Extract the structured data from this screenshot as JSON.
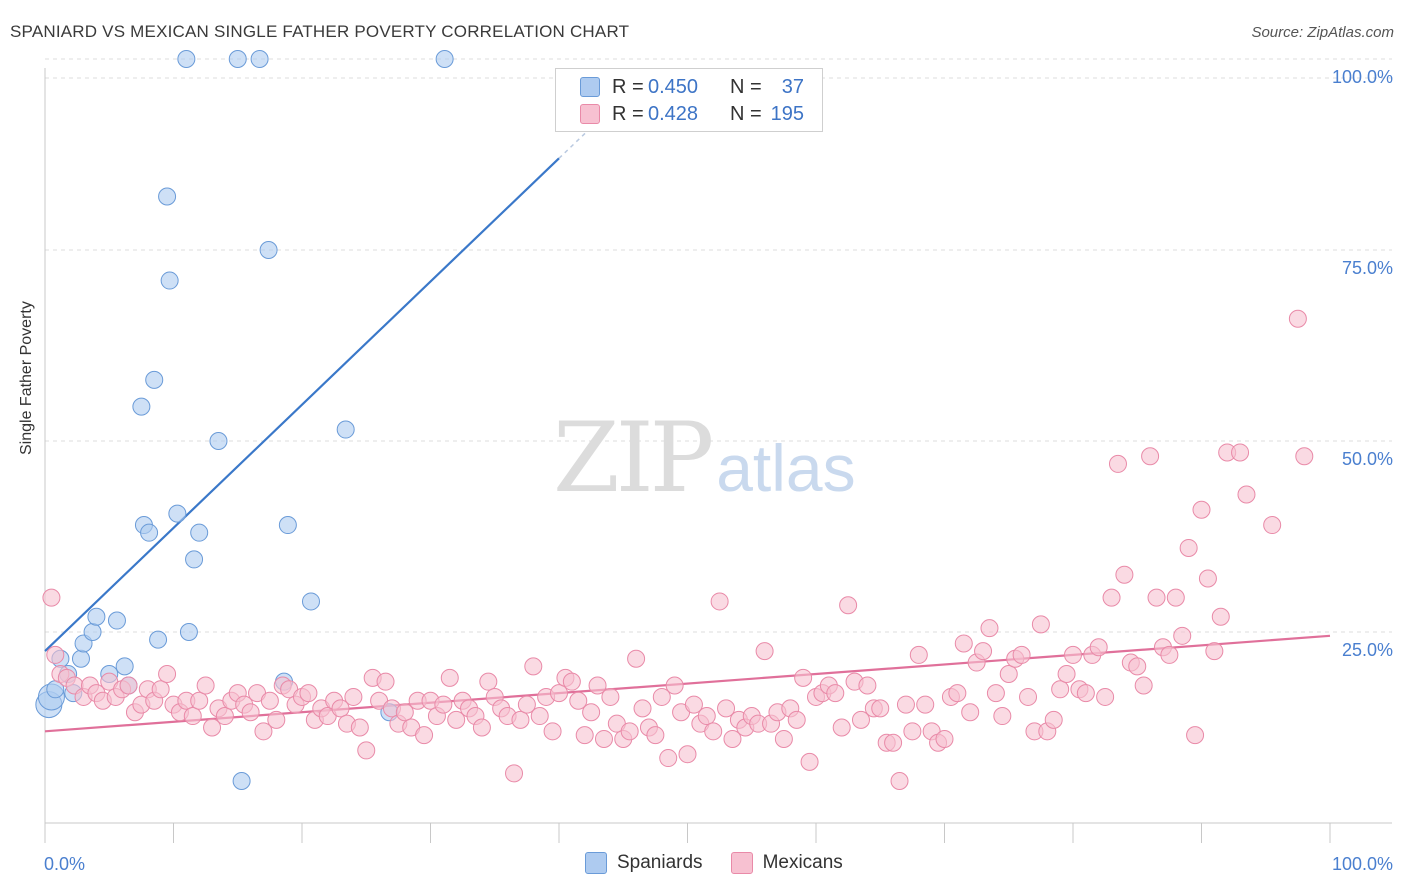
{
  "title": "SPANIARD VS MEXICAN SINGLE FATHER POVERTY CORRELATION CHART",
  "source": "Source: ZipAtlas.com",
  "watermark": {
    "zip": "ZIP",
    "atlas": "atlas"
  },
  "legend": {
    "rows": [
      {
        "r_label": "R = ",
        "r_value": "0.450",
        "n_label": "N = ",
        "n_value": "37",
        "color": "#aecbf0",
        "border": "#6a9bd8"
      },
      {
        "r_label": "R = ",
        "r_value": "0.428",
        "n_label": "N = ",
        "n_value": "195",
        "color": "#f7c1d1",
        "border": "#e98aa8"
      }
    ]
  },
  "bottom_legend": [
    {
      "label": "Spaniards",
      "color": "#aecbf0",
      "border": "#6a9bd8"
    },
    {
      "label": "Mexicans",
      "color": "#f7c1d1",
      "border": "#e98aa8"
    }
  ],
  "chart_data": {
    "type": "scatter",
    "title": "SPANIARD VS MEXICAN SINGLE FATHER POVERTY CORRELATION CHART",
    "xlabel": "",
    "ylabel": "Single Father Poverty",
    "xlim": [
      0,
      100
    ],
    "ylim": [
      0,
      100
    ],
    "x_tick_labels": [
      "0.0%",
      "100.0%"
    ],
    "y_ticks": [
      25,
      50,
      75,
      100
    ],
    "y_tick_labels": [
      "25.0%",
      "50.0%",
      "75.0%",
      "100.0%"
    ],
    "grid": true,
    "series": [
      {
        "name": "Spaniards",
        "color": "#aecbf0",
        "stroke": "#6a9bd8",
        "trend_color": "#3a78c9",
        "trend": [
          [
            0,
            22.5
          ],
          [
            40,
            87
          ]
        ],
        "points": [
          [
            0.3,
            15.5
          ],
          [
            0.5,
            16.5
          ],
          [
            0.8,
            17.5
          ],
          [
            1.2,
            21.5
          ],
          [
            1.8,
            19.5
          ],
          [
            2.2,
            17
          ],
          [
            2.8,
            21.5
          ],
          [
            3.0,
            23.5
          ],
          [
            3.7,
            25
          ],
          [
            4.0,
            27
          ],
          [
            5.0,
            19.5
          ],
          [
            5.6,
            26.5
          ],
          [
            6.2,
            20.5
          ],
          [
            6.5,
            18
          ],
          [
            7.5,
            54.5
          ],
          [
            7.7,
            39
          ],
          [
            8.1,
            38
          ],
          [
            8.5,
            58
          ],
          [
            8.8,
            24
          ],
          [
            9.5,
            82
          ],
          [
            9.7,
            71
          ],
          [
            10.3,
            40.5
          ],
          [
            11.2,
            25
          ],
          [
            11.6,
            34.5
          ],
          [
            11.0,
            100
          ],
          [
            12.0,
            38
          ],
          [
            13.5,
            50
          ],
          [
            15.0,
            100
          ],
          [
            15.3,
            5.5
          ],
          [
            16.7,
            100
          ],
          [
            17.4,
            75
          ],
          [
            18.6,
            18.5
          ],
          [
            18.9,
            39
          ],
          [
            20.7,
            29
          ],
          [
            23.4,
            51.5
          ],
          [
            26.8,
            14.5
          ],
          [
            31.1,
            100
          ]
        ]
      },
      {
        "name": "Mexicans",
        "color": "#f7c1d1",
        "stroke": "#e98aa8",
        "trend_color": "#e0709a",
        "trend": [
          [
            0,
            12
          ],
          [
            100,
            24.5
          ]
        ],
        "points": [
          [
            0.5,
            29.5
          ],
          [
            0.8,
            22
          ],
          [
            1.2,
            19.5
          ],
          [
            1.7,
            19
          ],
          [
            2.3,
            18
          ],
          [
            3.0,
            16.5
          ],
          [
            3.5,
            18
          ],
          [
            4.0,
            17
          ],
          [
            4.5,
            16
          ],
          [
            5.0,
            18.5
          ],
          [
            5.5,
            16.5
          ],
          [
            6.0,
            17.5
          ],
          [
            6.5,
            18
          ],
          [
            7.0,
            14.5
          ],
          [
            7.5,
            15.5
          ],
          [
            8.0,
            17.5
          ],
          [
            8.5,
            16
          ],
          [
            9.0,
            17.5
          ],
          [
            9.5,
            19.5
          ],
          [
            10.0,
            15.5
          ],
          [
            10.5,
            14.5
          ],
          [
            11.0,
            16
          ],
          [
            11.5,
            14
          ],
          [
            12.0,
            16
          ],
          [
            12.5,
            18
          ],
          [
            13.0,
            12.5
          ],
          [
            13.5,
            15
          ],
          [
            14.0,
            14
          ],
          [
            14.5,
            16
          ],
          [
            15.0,
            17
          ],
          [
            15.5,
            15.5
          ],
          [
            16.0,
            14.5
          ],
          [
            16.5,
            17
          ],
          [
            17.0,
            12
          ],
          [
            17.5,
            16
          ],
          [
            18.0,
            13.5
          ],
          [
            18.5,
            18
          ],
          [
            19.0,
            17.5
          ],
          [
            19.5,
            15.5
          ],
          [
            20.0,
            16.5
          ],
          [
            20.5,
            17
          ],
          [
            21.0,
            13.5
          ],
          [
            21.5,
            15
          ],
          [
            22.0,
            14
          ],
          [
            22.5,
            16
          ],
          [
            23.0,
            15
          ],
          [
            23.5,
            13
          ],
          [
            24.0,
            16.5
          ],
          [
            24.5,
            12.5
          ],
          [
            25.0,
            9.5
          ],
          [
            25.5,
            19
          ],
          [
            26.0,
            16
          ],
          [
            26.5,
            18.5
          ],
          [
            27.0,
            15
          ],
          [
            27.5,
            13
          ],
          [
            28.0,
            14.5
          ],
          [
            28.5,
            12.5
          ],
          [
            29.0,
            16
          ],
          [
            29.5,
            11.5
          ],
          [
            30.0,
            16
          ],
          [
            30.5,
            14
          ],
          [
            31.0,
            15.5
          ],
          [
            31.5,
            19
          ],
          [
            32.0,
            13.5
          ],
          [
            32.5,
            16
          ],
          [
            33.0,
            15
          ],
          [
            33.5,
            14
          ],
          [
            34.0,
            12.5
          ],
          [
            34.5,
            18.5
          ],
          [
            35.0,
            16.5
          ],
          [
            35.5,
            15
          ],
          [
            36.0,
            14
          ],
          [
            36.5,
            6.5
          ],
          [
            37.0,
            13.5
          ],
          [
            37.5,
            15.5
          ],
          [
            38.0,
            20.5
          ],
          [
            38.5,
            14
          ],
          [
            39.0,
            16.5
          ],
          [
            39.5,
            12
          ],
          [
            40.0,
            17
          ],
          [
            40.5,
            19
          ],
          [
            41.0,
            18.5
          ],
          [
            41.5,
            16
          ],
          [
            42.0,
            11.5
          ],
          [
            42.5,
            14.5
          ],
          [
            43.0,
            18
          ],
          [
            43.5,
            11
          ],
          [
            44.0,
            16.5
          ],
          [
            44.5,
            13
          ],
          [
            45.0,
            11
          ],
          [
            45.5,
            12
          ],
          [
            46.0,
            21.5
          ],
          [
            46.5,
            15
          ],
          [
            47.0,
            12.5
          ],
          [
            47.5,
            11.5
          ],
          [
            48.0,
            16.5
          ],
          [
            48.5,
            8.5
          ],
          [
            49.0,
            18
          ],
          [
            49.5,
            14.5
          ],
          [
            50.0,
            9
          ],
          [
            50.5,
            15.5
          ],
          [
            51.0,
            13
          ],
          [
            51.5,
            14
          ],
          [
            52.0,
            12
          ],
          [
            52.5,
            29
          ],
          [
            53.0,
            15
          ],
          [
            53.5,
            11
          ],
          [
            54.0,
            13.5
          ],
          [
            54.5,
            12.5
          ],
          [
            55.0,
            14
          ],
          [
            55.5,
            13
          ],
          [
            56.0,
            22.5
          ],
          [
            56.5,
            13
          ],
          [
            57.0,
            14.5
          ],
          [
            57.5,
            11
          ],
          [
            58.0,
            15
          ],
          [
            58.5,
            13.5
          ],
          [
            59.0,
            19
          ],
          [
            59.5,
            8
          ],
          [
            60.0,
            16.5
          ],
          [
            60.5,
            17
          ],
          [
            61.0,
            18
          ],
          [
            61.5,
            17
          ],
          [
            62.0,
            12.5
          ],
          [
            62.5,
            28.5
          ],
          [
            63.0,
            18.5
          ],
          [
            63.5,
            13.5
          ],
          [
            64.0,
            18
          ],
          [
            64.5,
            15
          ],
          [
            65.0,
            15
          ],
          [
            65.5,
            10.5
          ],
          [
            66.0,
            10.5
          ],
          [
            66.5,
            5.5
          ],
          [
            67.0,
            15.5
          ],
          [
            67.5,
            12
          ],
          [
            68.0,
            22
          ],
          [
            68.5,
            15.5
          ],
          [
            69.0,
            12
          ],
          [
            69.5,
            10.5
          ],
          [
            70.0,
            11
          ],
          [
            70.5,
            16.5
          ],
          [
            71.0,
            17
          ],
          [
            71.5,
            23.5
          ],
          [
            72.0,
            14.5
          ],
          [
            72.5,
            21
          ],
          [
            73.0,
            22.5
          ],
          [
            73.5,
            25.5
          ],
          [
            74.0,
            17
          ],
          [
            74.5,
            14
          ],
          [
            75.0,
            19.5
          ],
          [
            75.5,
            21.5
          ],
          [
            76.0,
            22
          ],
          [
            76.5,
            16.5
          ],
          [
            77.0,
            12
          ],
          [
            77.5,
            26
          ],
          [
            78.0,
            12
          ],
          [
            78.5,
            13.5
          ],
          [
            79.0,
            17.5
          ],
          [
            79.5,
            19.5
          ],
          [
            80.0,
            22
          ],
          [
            80.5,
            17.5
          ],
          [
            81.0,
            17
          ],
          [
            81.5,
            22
          ],
          [
            82.0,
            23
          ],
          [
            82.5,
            16.5
          ],
          [
            83.0,
            29.5
          ],
          [
            83.5,
            47
          ],
          [
            84.0,
            32.5
          ],
          [
            84.5,
            21
          ],
          [
            85.0,
            20.5
          ],
          [
            85.5,
            18
          ],
          [
            86.0,
            48
          ],
          [
            86.5,
            29.5
          ],
          [
            87.0,
            23
          ],
          [
            87.5,
            22
          ],
          [
            88.0,
            29.5
          ],
          [
            88.5,
            24.5
          ],
          [
            89.0,
            36
          ],
          [
            89.5,
            11.5
          ],
          [
            90.0,
            41
          ],
          [
            90.5,
            32
          ],
          [
            91.0,
            22.5
          ],
          [
            91.5,
            27
          ],
          [
            92.0,
            48.5
          ],
          [
            93.0,
            48.5
          ],
          [
            93.5,
            43
          ],
          [
            95.5,
            39
          ],
          [
            98.0,
            48
          ],
          [
            97.5,
            66
          ]
        ]
      }
    ]
  }
}
